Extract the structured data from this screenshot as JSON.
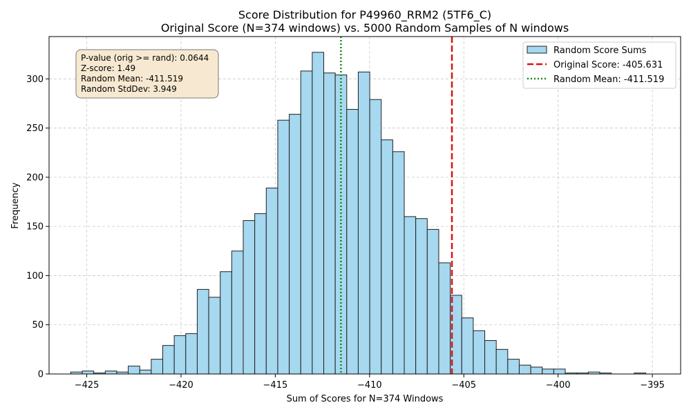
{
  "chart_data": {
    "type": "bar",
    "title_line1": "Score Distribution for P49960_RRM2 (5TF6_C)",
    "title_line2": "Original Score (N=374 windows) vs. 5000 Random Samples of N windows",
    "xlabel": "Sum of Scores for N=374 Windows",
    "ylabel": "Frequency",
    "xlim": [
      -427.0,
      -393.5
    ],
    "ylim": [
      0,
      343
    ],
    "xticks": [
      -425,
      -420,
      -415,
      -410,
      -405,
      -400,
      -395
    ],
    "yticks": [
      0,
      50,
      100,
      150,
      200,
      250,
      300
    ],
    "grid": true,
    "legend_position": "top-right",
    "bin_width": 0.61,
    "bin_start": -425.85,
    "counts": [
      2,
      3,
      1,
      3,
      2,
      8,
      4,
      15,
      29,
      39,
      41,
      86,
      78,
      104,
      125,
      156,
      163,
      189,
      258,
      264,
      308,
      327,
      306,
      304,
      269,
      307,
      279,
      238,
      226,
      160,
      158,
      147,
      113,
      80,
      57,
      44,
      34,
      25,
      15,
      9,
      7,
      5,
      5,
      1,
      1,
      2,
      1,
      0,
      0,
      1
    ],
    "histogram_color": "#a6d8ef",
    "histogram_edge_color": "#1f1f1f",
    "original_score": -405.631,
    "original_color": "#dd1111",
    "random_mean": -411.519,
    "mean_color": "#118811",
    "legend": [
      {
        "label": "Random Score Sums",
        "style": "patch"
      },
      {
        "label": "Original Score: -405.631",
        "style": "dashed"
      },
      {
        "label": "Random Mean: -411.519",
        "style": "dotted"
      }
    ],
    "stats_box": {
      "lines": [
        "P-value (orig >= rand): 0.0644",
        "Z-score: 1.49",
        "Random Mean: -411.519",
        "Random StdDev: 3.949"
      ],
      "fill_color": "#f7e9d1"
    }
  }
}
